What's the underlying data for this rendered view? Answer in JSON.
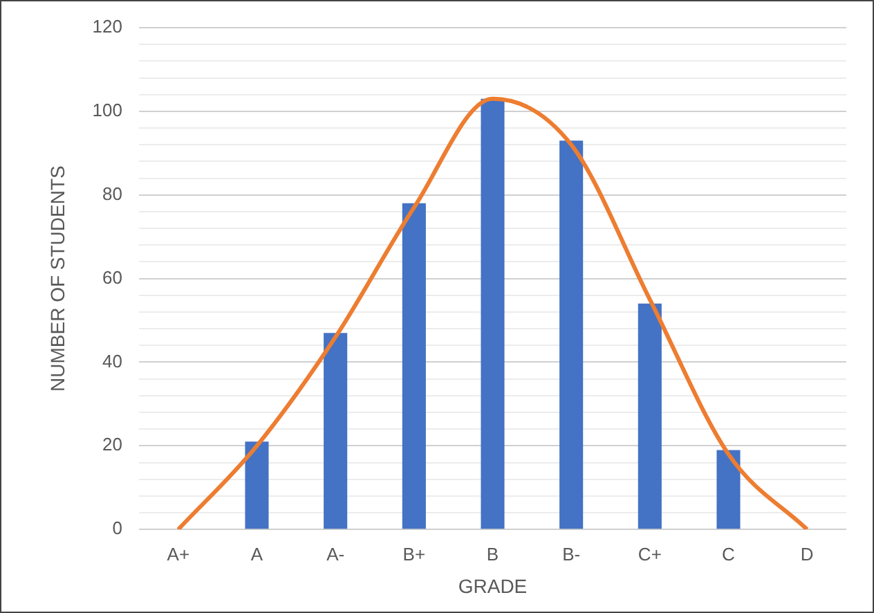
{
  "chart_data": {
    "type": "bar",
    "xlabel": "GRADE",
    "ylabel": "NUMBER OF STUDENTS",
    "categories": [
      "A+",
      "A",
      "A-",
      "B+",
      "B",
      "B-",
      "C+",
      "C",
      "D"
    ],
    "series": [
      {
        "color": "#4472c4",
        "values": [
          0,
          21,
          47,
          78,
          103,
          93,
          54,
          19,
          0
        ]
      },
      {
        "type": "line",
        "color": "#ed7d31",
        "values": [
          0,
          20,
          46,
          77,
          103,
          92,
          55,
          18,
          0
        ]
      }
    ],
    "ylim": [
      0,
      120
    ],
    "yticks": [
      0,
      {
        "value": 4,
        "label": null
      },
      {
        "value": 8,
        "label": null
      },
      {
        "value": 12,
        "label": null
      },
      {
        "value": 16,
        "label": null
      },
      20,
      {
        "value": 24,
        "label": null
      },
      {
        "value": 28,
        "label": null
      },
      {
        "value": 32,
        "label": null
      },
      {
        "value": 36,
        "label": null
      },
      40,
      {
        "value": 44,
        "label": null
      },
      {
        "value": 48,
        "label": null
      },
      {
        "value": 52,
        "label": null
      },
      {
        "value": 56,
        "label": null
      },
      60,
      {
        "value": 64,
        "label": null
      },
      {
        "value": 68,
        "label": null
      },
      {
        "value": 72,
        "label": null
      },
      {
        "value": 76,
        "label": null
      },
      80,
      {
        "value": 84,
        "label": null
      },
      {
        "value": 88,
        "label": null
      },
      {
        "value": 92,
        "label": null
      },
      {
        "value": 96,
        "label": null
      },
      100,
      {
        "value": 104,
        "label": null
      },
      {
        "value": 108,
        "label": null
      },
      {
        "value": 112,
        "label": null
      },
      {
        "value": 116,
        "label": null
      },
      120
    ],
    "grid": "y",
    "legend": false,
    "marker": "none"
  }
}
